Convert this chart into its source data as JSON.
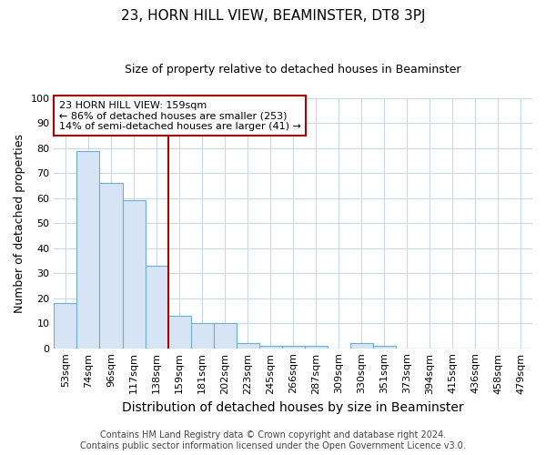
{
  "title": "23, HORN HILL VIEW, BEAMINSTER, DT8 3PJ",
  "subtitle": "Size of property relative to detached houses in Beaminster",
  "xlabel": "Distribution of detached houses by size in Beaminster",
  "ylabel": "Number of detached properties",
  "categories": [
    "53sqm",
    "74sqm",
    "96sqm",
    "117sqm",
    "138sqm",
    "159sqm",
    "181sqm",
    "202sqm",
    "223sqm",
    "245sqm",
    "266sqm",
    "287sqm",
    "309sqm",
    "330sqm",
    "351sqm",
    "373sqm",
    "394sqm",
    "415sqm",
    "436sqm",
    "458sqm",
    "479sqm"
  ],
  "values": [
    18,
    79,
    66,
    59,
    33,
    13,
    10,
    10,
    2,
    1,
    1,
    1,
    0,
    2,
    1,
    0,
    0,
    0,
    0,
    0,
    0
  ],
  "bar_fill_color": "#d6e4f5",
  "bar_edge_color": "#6baed6",
  "highlight_line_color": "#aa0000",
  "highlight_index": 5,
  "ylim": [
    0,
    100
  ],
  "yticks": [
    0,
    10,
    20,
    30,
    40,
    50,
    60,
    70,
    80,
    90,
    100
  ],
  "annotation_text": "23 HORN HILL VIEW: 159sqm\n← 86% of detached houses are smaller (253)\n14% of semi-detached houses are larger (41) →",
  "annotation_box_color": "#ffffff",
  "annotation_border_color": "#aa0000",
  "footer_line1": "Contains HM Land Registry data © Crown copyright and database right 2024.",
  "footer_line2": "Contains public sector information licensed under the Open Government Licence v3.0.",
  "background_color": "#ffffff",
  "grid_color": "#c8d8e8",
  "title_fontsize": 11,
  "subtitle_fontsize": 9,
  "xlabel_fontsize": 10,
  "ylabel_fontsize": 9,
  "tick_fontsize": 8,
  "annot_fontsize": 8,
  "footer_fontsize": 7
}
